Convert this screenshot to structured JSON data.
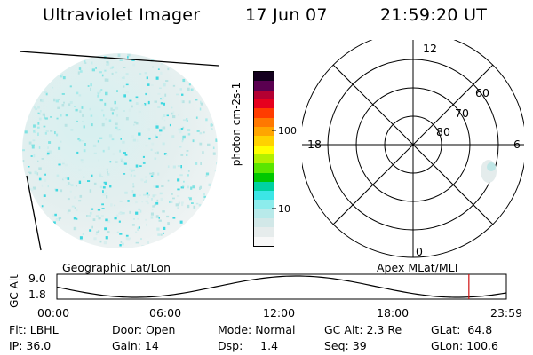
{
  "header": {
    "title": "Ultraviolet Imager",
    "date": "17 Jun 07",
    "time": "21:59:20 UT"
  },
  "colorbar": {
    "unit_label": "photon cm-2s-1",
    "ticks": [
      "100",
      "10"
    ],
    "colors": [
      "#f8f8f8",
      "#e6ecec",
      "#d2e8e8",
      "#b8eaea",
      "#8cecec",
      "#3ce6e6",
      "#00d2a0",
      "#00c800",
      "#5ae600",
      "#b4f000",
      "#ffff00",
      "#ffd200",
      "#ffa500",
      "#ff7800",
      "#ff3c00",
      "#e6001e",
      "#b40032",
      "#5a0050",
      "#14001e"
    ]
  },
  "polar_plot": {
    "clock_labels": [
      "12",
      "18",
      "6",
      "0"
    ],
    "latitude_labels": [
      "60",
      "70",
      "80"
    ]
  },
  "timeline": {
    "left_label": "Geographic Lat/Lon",
    "right_label": "Apex MLat/MLT",
    "axis_title": "GC Alt",
    "y_ticks": [
      "9.0",
      "1.8"
    ],
    "x_ticks": [
      "00:00",
      "06:00",
      "12:00",
      "18:00",
      "23:59"
    ],
    "marker_hour": 22.0,
    "marker_color": "#d01010"
  },
  "info": {
    "filter": "Flt: LBHL",
    "ip": "IP: 36.0",
    "door": "Door: Open",
    "gain": "Gain: 14",
    "mode": "Mode: Normal",
    "dsp": "Dsp:     1.4",
    "gc_alt": "GC Alt: 2.3 Re",
    "seq": "Seq: 39",
    "glat": "GLat:  64.8",
    "glon": "GLon: 100.6"
  }
}
